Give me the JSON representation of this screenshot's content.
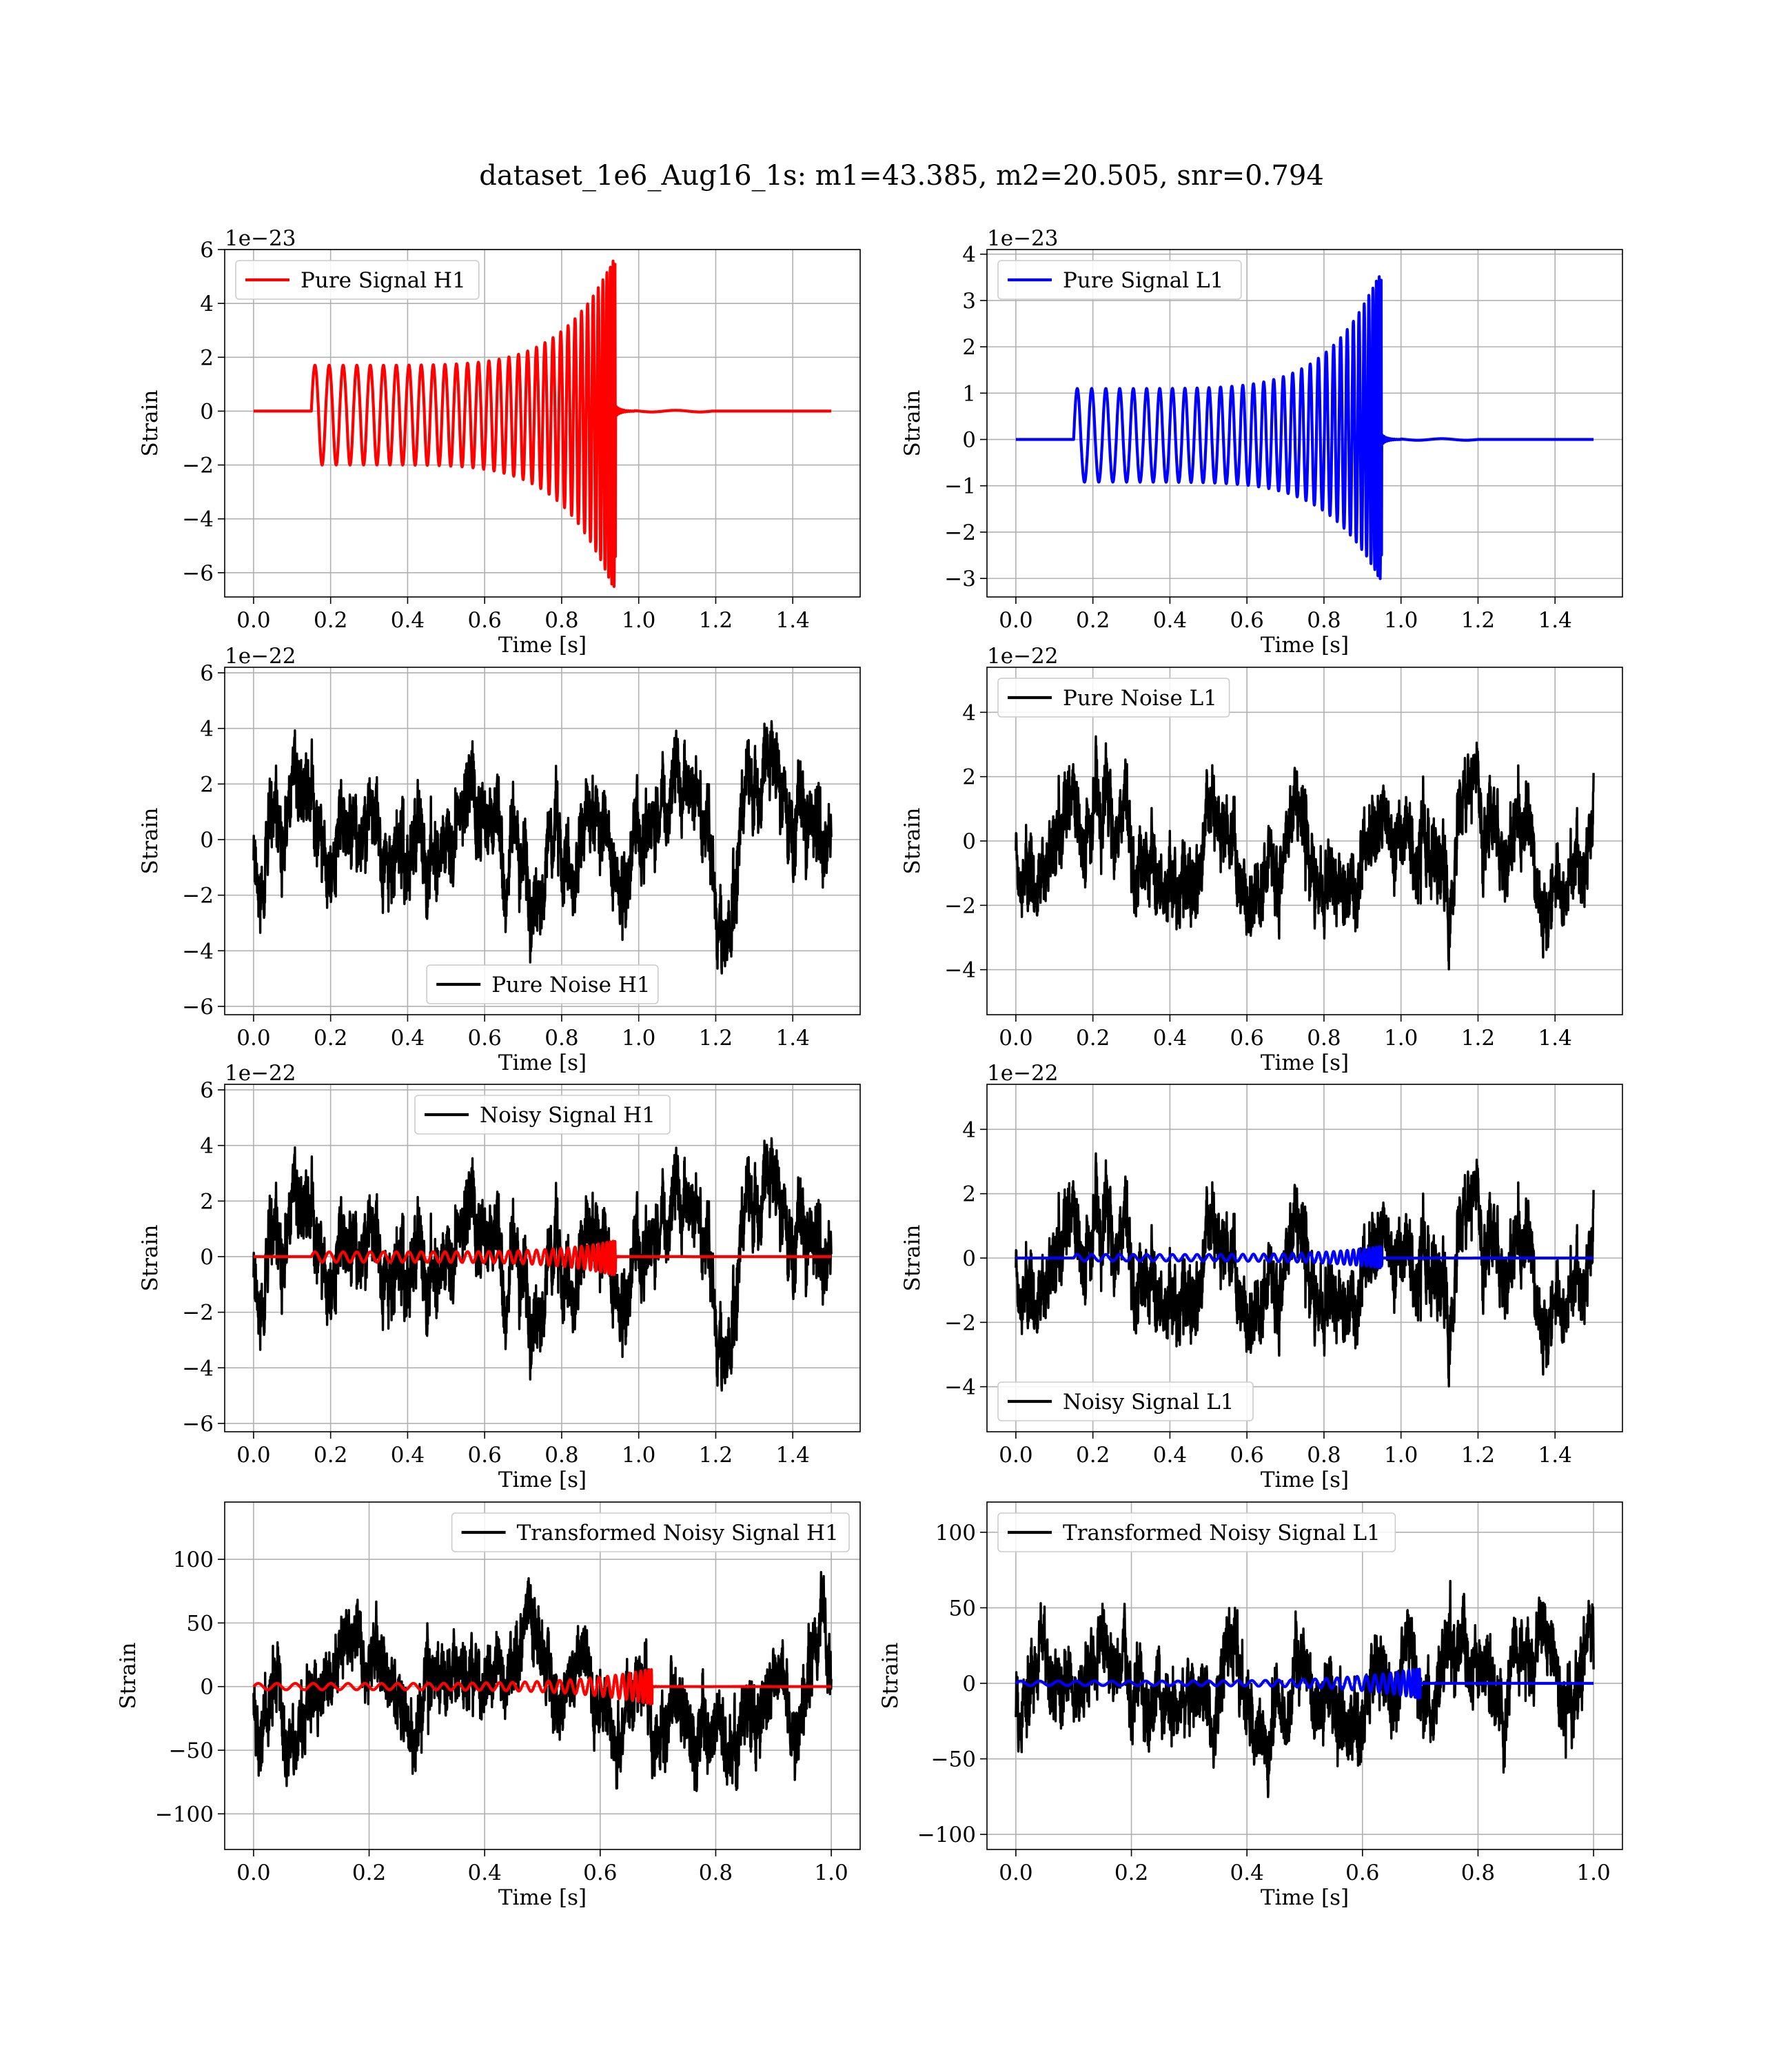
{
  "figure": {
    "suptitle": "dataset_1e6_Aug16_1s: m1=43.385, m2=20.505, snr=0.794"
  },
  "colors": {
    "h1_signal": "#ff0000",
    "l1_signal": "#0000ff",
    "noise": "#000000"
  },
  "chart_data": [
    {
      "id": "pure-signal-h1",
      "type": "line",
      "title": "",
      "xlabel": "Time [s]",
      "ylabel": "Strain",
      "offset_text": "1e−23",
      "xlim": [
        -0.075,
        1.575
      ],
      "ylim": [
        -6.9,
        6.0
      ],
      "xticks": [
        0.0,
        0.2,
        0.4,
        0.6,
        0.8,
        1.0,
        1.2,
        1.4
      ],
      "xtick_labels": [
        "0.0",
        "0.2",
        "0.4",
        "0.6",
        "0.8",
        "1.0",
        "1.2",
        "1.4"
      ],
      "yticks": [
        -6,
        -4,
        -2,
        0,
        2,
        4,
        6
      ],
      "ytick_labels": [
        "−6",
        "−4",
        "−2",
        "0",
        "2",
        "4",
        "6"
      ],
      "grid": true,
      "legend_position": "upper-left",
      "series": [
        {
          "name": "Pure Signal H1",
          "color": "#ff0000",
          "kind": "chirp",
          "t_start": 0.15,
          "t_merge": 0.94,
          "t_end": 1.5,
          "amp_start": 2.0,
          "amp_peak": 5.8,
          "amp_min_peak": -6.8,
          "cycles": 34
        }
      ]
    },
    {
      "id": "pure-signal-l1",
      "type": "line",
      "title": "",
      "xlabel": "Time [s]",
      "ylabel": "Strain",
      "offset_text": "1e−23",
      "xlim": [
        -0.075,
        1.575
      ],
      "ylim": [
        -3.4,
        4.1
      ],
      "xticks": [
        0.0,
        0.2,
        0.4,
        0.6,
        0.8,
        1.0,
        1.2,
        1.4
      ],
      "xtick_labels": [
        "0.0",
        "0.2",
        "0.4",
        "0.6",
        "0.8",
        "1.0",
        "1.2",
        "1.4"
      ],
      "yticks": [
        -3,
        -2,
        -1,
        0,
        1,
        2,
        3,
        4
      ],
      "ytick_labels": [
        "−3",
        "−2",
        "−1",
        "0",
        "1",
        "2",
        "3",
        "4"
      ],
      "grid": true,
      "legend_position": "upper-left",
      "series": [
        {
          "name": "Pure Signal L1",
          "color": "#0000ff",
          "kind": "chirp",
          "t_start": 0.15,
          "t_merge": 0.95,
          "t_end": 1.5,
          "amp_start": 1.1,
          "amp_peak": 3.7,
          "amp_min_peak": -3.1,
          "cycles": 34
        }
      ]
    },
    {
      "id": "pure-noise-h1",
      "type": "line",
      "title": "",
      "xlabel": "Time [s]",
      "ylabel": "Strain",
      "offset_text": "1e−22",
      "xlim": [
        -0.075,
        1.575
      ],
      "ylim": [
        -6.3,
        6.2
      ],
      "xticks": [
        0.0,
        0.2,
        0.4,
        0.6,
        0.8,
        1.0,
        1.2,
        1.4
      ],
      "xtick_labels": [
        "0.0",
        "0.2",
        "0.4",
        "0.6",
        "0.8",
        "1.0",
        "1.2",
        "1.4"
      ],
      "yticks": [
        -6,
        -4,
        -2,
        0,
        2,
        4,
        6
      ],
      "ytick_labels": [
        "−6",
        "−4",
        "−2",
        "0",
        "2",
        "4",
        "6"
      ],
      "grid": true,
      "legend_position": "lower-center",
      "series": [
        {
          "name": "Pure Noise H1",
          "color": "#000000",
          "kind": "noise",
          "t_start": 0.0,
          "t_end": 1.5,
          "amp": 5.9,
          "seed": 11
        }
      ]
    },
    {
      "id": "pure-noise-l1",
      "type": "line",
      "title": "",
      "xlabel": "Time [s]",
      "ylabel": "Strain",
      "offset_text": "1e−22",
      "xlim": [
        -0.075,
        1.575
      ],
      "ylim": [
        -5.4,
        5.4
      ],
      "xticks": [
        0.0,
        0.2,
        0.4,
        0.6,
        0.8,
        1.0,
        1.2,
        1.4
      ],
      "xtick_labels": [
        "0.0",
        "0.2",
        "0.4",
        "0.6",
        "0.8",
        "1.0",
        "1.2",
        "1.4"
      ],
      "yticks": [
        -4,
        -2,
        0,
        2,
        4
      ],
      "ytick_labels": [
        "−4",
        "−2",
        "0",
        "2",
        "4"
      ],
      "grid": true,
      "legend_position": "upper-left",
      "series": [
        {
          "name": "Pure Noise L1",
          "color": "#000000",
          "kind": "noise",
          "t_start": 0.0,
          "t_end": 1.5,
          "amp": 4.9,
          "seed": 23
        }
      ]
    },
    {
      "id": "noisy-signal-h1",
      "type": "line",
      "title": "",
      "xlabel": "Time [s]",
      "ylabel": "Strain",
      "offset_text": "1e−22",
      "xlim": [
        -0.075,
        1.575
      ],
      "ylim": [
        -6.3,
        6.2
      ],
      "xticks": [
        0.0,
        0.2,
        0.4,
        0.6,
        0.8,
        1.0,
        1.2,
        1.4
      ],
      "xtick_labels": [
        "0.0",
        "0.2",
        "0.4",
        "0.6",
        "0.8",
        "1.0",
        "1.2",
        "1.4"
      ],
      "yticks": [
        -6,
        -4,
        -2,
        0,
        2,
        4,
        6
      ],
      "ytick_labels": [
        "−6",
        "−4",
        "−2",
        "0",
        "2",
        "4",
        "6"
      ],
      "grid": true,
      "legend_position": "upper-center",
      "series": [
        {
          "name": "Noisy Signal H1",
          "color": "#000000",
          "kind": "noise",
          "t_start": 0.0,
          "t_end": 1.5,
          "amp": 5.9,
          "seed": 11
        },
        {
          "color": "#ff0000",
          "kind": "chirp",
          "t_start": 0.15,
          "t_merge": 0.94,
          "t_end": 1.5,
          "amp_start": 0.2,
          "amp_peak": 0.58,
          "amp_min_peak": -0.68,
          "cycles": 34
        }
      ]
    },
    {
      "id": "noisy-signal-l1",
      "type": "line",
      "title": "",
      "xlabel": "Time [s]",
      "ylabel": "Strain",
      "offset_text": "1e−22",
      "xlim": [
        -0.075,
        1.575
      ],
      "ylim": [
        -5.4,
        5.4
      ],
      "xticks": [
        0.0,
        0.2,
        0.4,
        0.6,
        0.8,
        1.0,
        1.2,
        1.4
      ],
      "xtick_labels": [
        "0.0",
        "0.2",
        "0.4",
        "0.6",
        "0.8",
        "1.0",
        "1.2",
        "1.4"
      ],
      "yticks": [
        -4,
        -2,
        0,
        2,
        4
      ],
      "ytick_labels": [
        "−4",
        "−2",
        "0",
        "2",
        "4"
      ],
      "grid": true,
      "legend_position": "lower-left",
      "series": [
        {
          "name": "Noisy Signal L1",
          "color": "#000000",
          "kind": "noise",
          "t_start": 0.0,
          "t_end": 1.5,
          "amp": 4.9,
          "seed": 23
        },
        {
          "color": "#0000ff",
          "kind": "chirp",
          "t_start": 0.15,
          "t_merge": 0.95,
          "t_end": 1.5,
          "amp_start": 0.11,
          "amp_peak": 0.37,
          "amp_min_peak": -0.31,
          "cycles": 34
        }
      ]
    },
    {
      "id": "transformed-noisy-signal-h1",
      "type": "line",
      "title": "",
      "xlabel": "Time [s]",
      "ylabel": "Strain",
      "offset_text": "",
      "xlim": [
        -0.05,
        1.05
      ],
      "ylim": [
        -128,
        145
      ],
      "xticks": [
        0.0,
        0.2,
        0.4,
        0.6,
        0.8,
        1.0
      ],
      "xtick_labels": [
        "0.0",
        "0.2",
        "0.4",
        "0.6",
        "0.8",
        "1.0"
      ],
      "yticks": [
        -100,
        -50,
        0,
        50,
        100
      ],
      "ytick_labels": [
        "−100",
        "−50",
        "0",
        "50",
        "100"
      ],
      "grid": true,
      "legend_position": "upper-right",
      "series": [
        {
          "name": "Transformed Noisy Signal H1",
          "color": "#000000",
          "kind": "noise",
          "t_start": 0.0,
          "t_end": 1.0,
          "amp": 115,
          "seed": 37
        },
        {
          "color": "#ff0000",
          "kind": "chirp",
          "t_start": 0.0,
          "t_merge": 0.69,
          "t_end": 1.0,
          "amp_start": 2.5,
          "amp_peak": 14,
          "amp_min_peak": -14,
          "cycles": 34
        }
      ]
    },
    {
      "id": "transformed-noisy-signal-l1",
      "type": "line",
      "title": "",
      "xlabel": "Time [s]",
      "ylabel": "Strain",
      "offset_text": "",
      "xlim": [
        -0.05,
        1.05
      ],
      "ylim": [
        -110,
        120
      ],
      "xticks": [
        0.0,
        0.2,
        0.4,
        0.6,
        0.8,
        1.0
      ],
      "xtick_labels": [
        "0.0",
        "0.2",
        "0.4",
        "0.6",
        "0.8",
        "1.0"
      ],
      "yticks": [
        -100,
        -50,
        0,
        50,
        100
      ],
      "ytick_labels": [
        "−100",
        "−50",
        "0",
        "50",
        "100"
      ],
      "grid": true,
      "legend_position": "upper-left",
      "series": [
        {
          "name": "Transformed Noisy Signal L1",
          "color": "#000000",
          "kind": "noise",
          "t_start": 0.0,
          "t_end": 1.0,
          "amp": 100,
          "seed": 53
        },
        {
          "color": "#0000ff",
          "kind": "chirp",
          "t_start": 0.0,
          "t_merge": 0.7,
          "t_end": 1.0,
          "amp_start": 1.5,
          "amp_peak": 10,
          "amp_min_peak": -10,
          "cycles": 34
        }
      ]
    }
  ]
}
